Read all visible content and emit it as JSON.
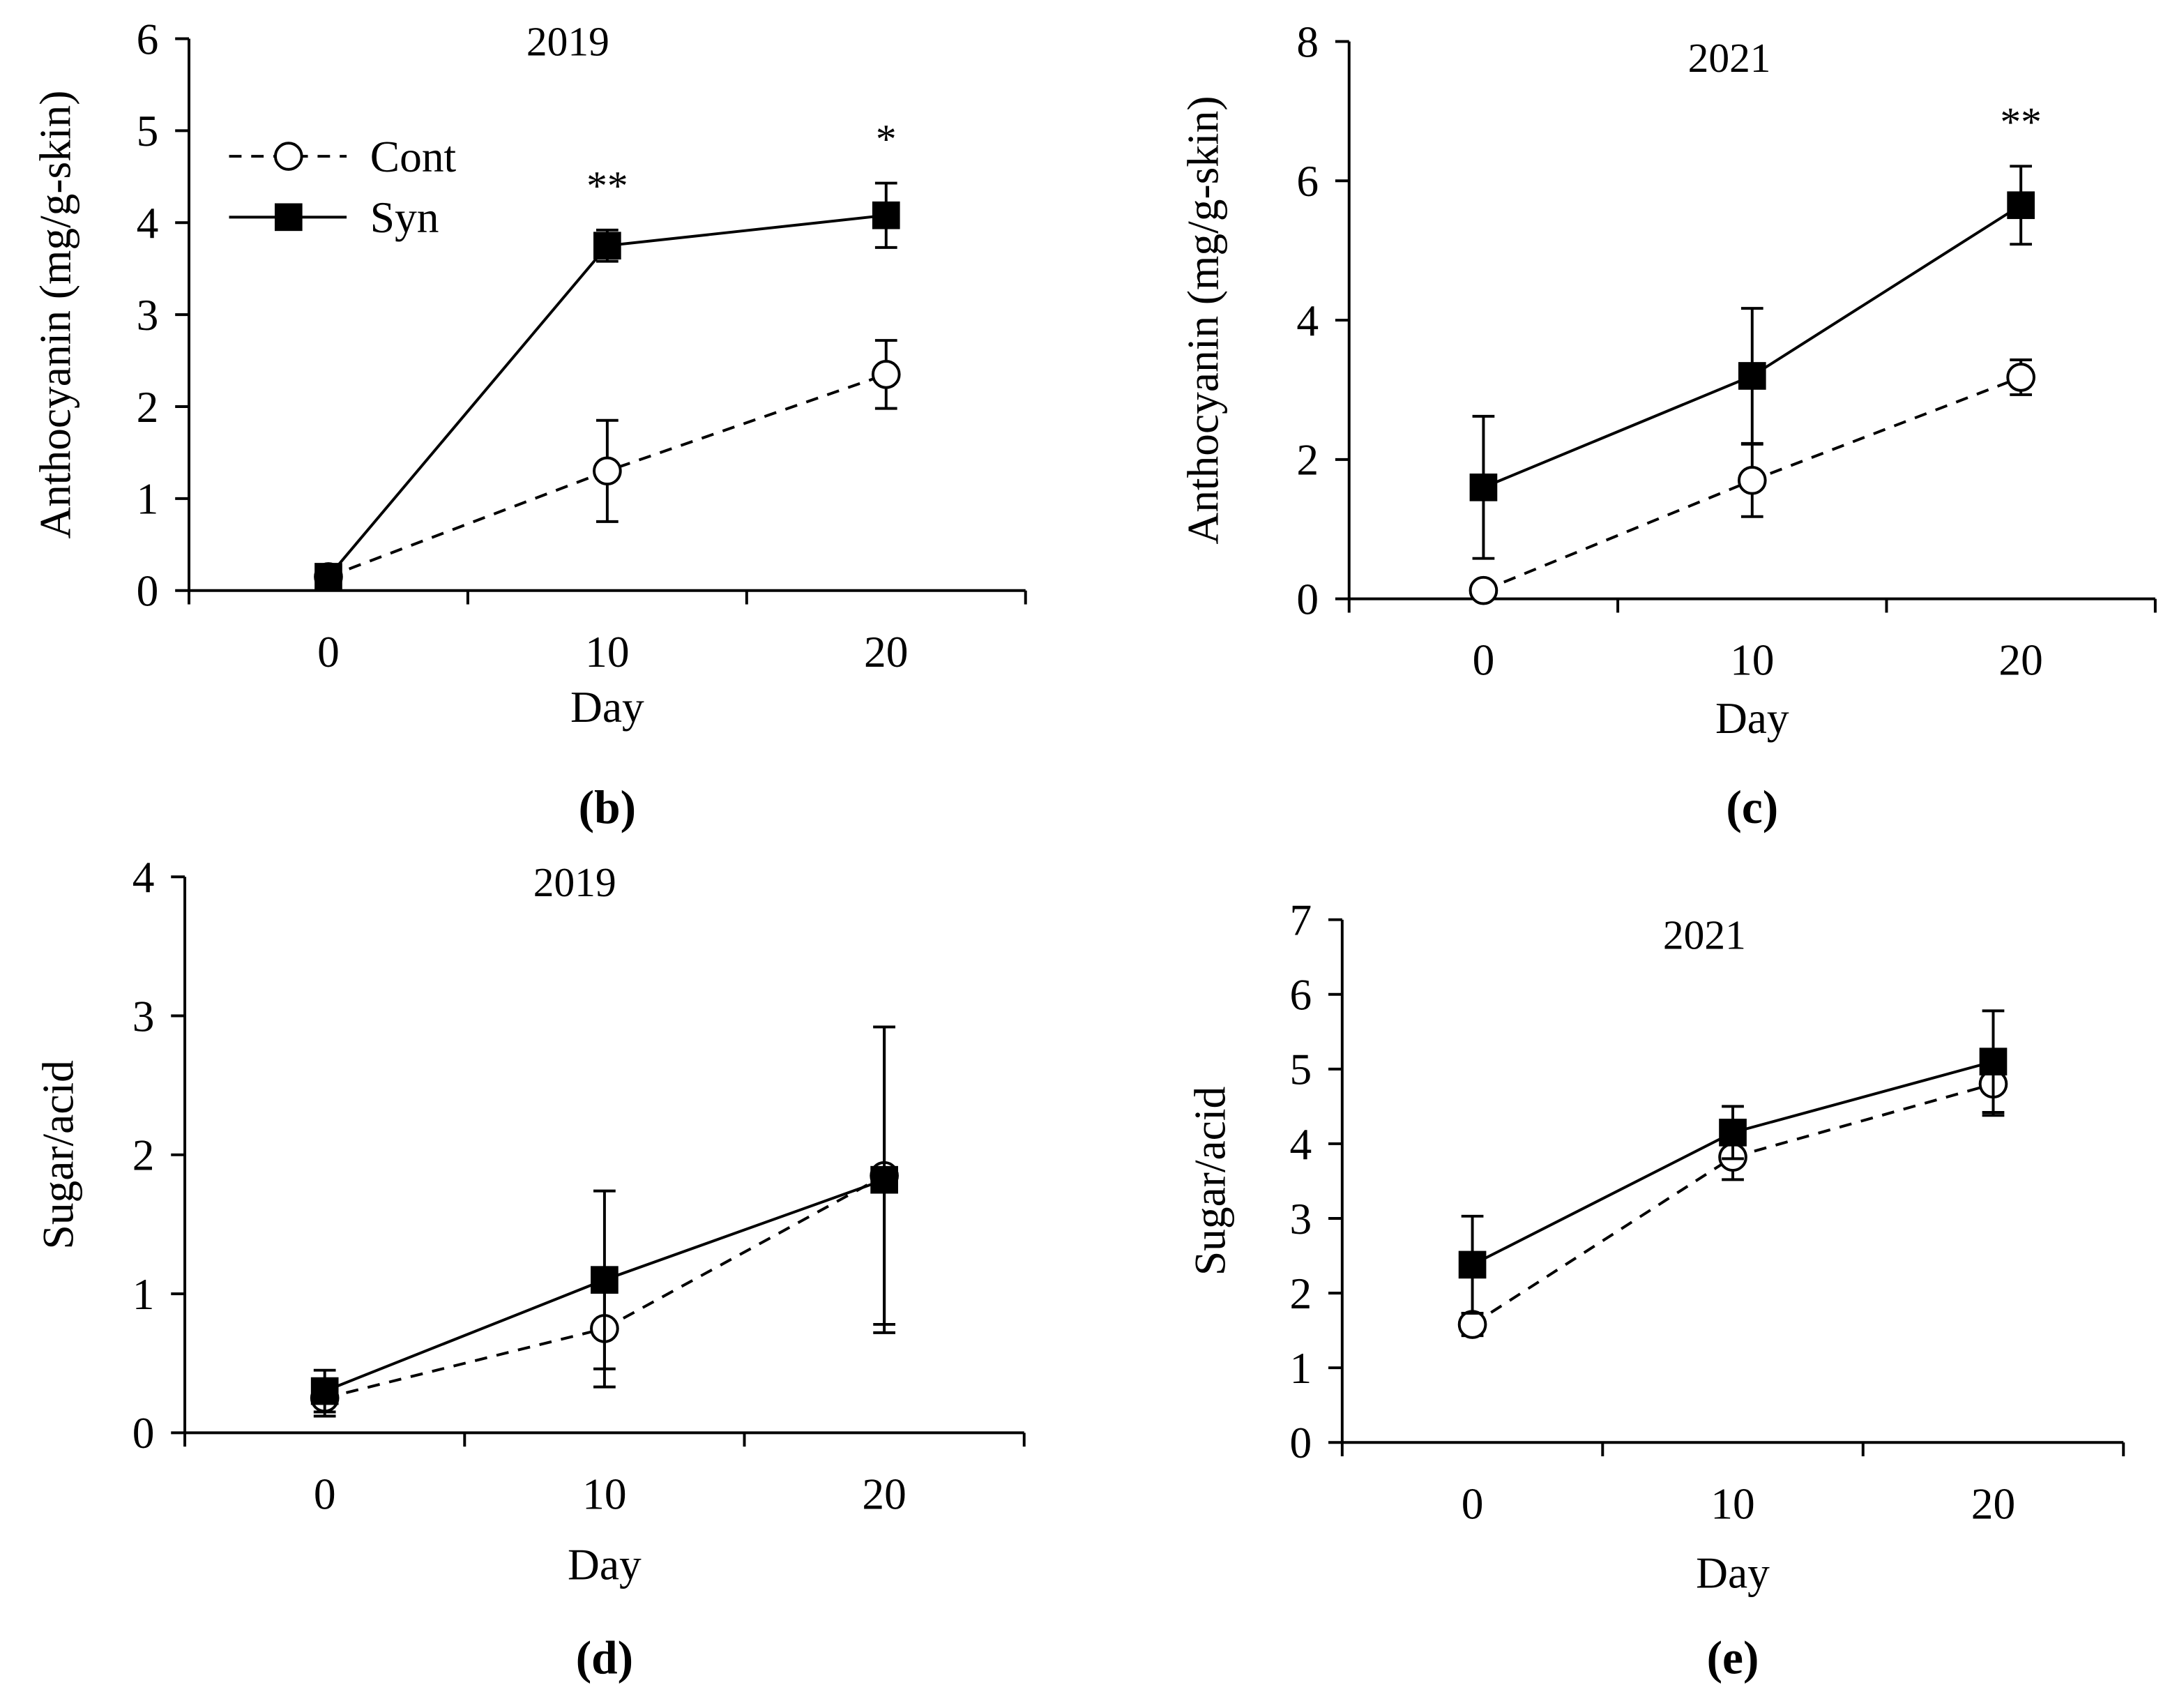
{
  "legend": {
    "entries": [
      "Cont",
      "Syn"
    ],
    "placement": "top-left of panel b"
  },
  "chart_data": [
    {
      "panel": "(b)",
      "type": "line",
      "title": "2019",
      "xlabel": "Day",
      "ylabel": "Anthocyanin (mg/g-skin)",
      "x": [
        0,
        10,
        20
      ],
      "xticks": [
        "0",
        "10",
        "20"
      ],
      "xlim": [
        -5,
        25
      ],
      "ylim": [
        0,
        6
      ],
      "yticks": [
        "0",
        "1",
        "2",
        "3",
        "4",
        "5",
        "6"
      ],
      "series": [
        {
          "name": "Cont",
          "values": [
            0.15,
            1.3,
            2.35
          ],
          "errors": [
            0.0,
            0.55,
            0.37
          ]
        },
        {
          "name": "Syn",
          "values": [
            0.15,
            3.75,
            4.08
          ],
          "errors": [
            0.0,
            0.17,
            0.35
          ]
        }
      ],
      "annotations": [
        {
          "x": 10,
          "text": "**"
        },
        {
          "x": 20,
          "text": "*"
        }
      ]
    },
    {
      "panel": "(c)",
      "type": "line",
      "title": "2021",
      "xlabel": "Day",
      "ylabel": "Anthocyanin (mg/g-skin)",
      "x": [
        0,
        10,
        20
      ],
      "xticks": [
        "0",
        "10",
        "20"
      ],
      "xlim": [
        -5,
        25
      ],
      "ylim": [
        0,
        8
      ],
      "yticks": [
        "0",
        "2",
        "4",
        "6",
        "8"
      ],
      "series": [
        {
          "name": "Cont",
          "values": [
            0.12,
            1.7,
            3.18
          ],
          "errors": [
            0.0,
            0.52,
            0.25
          ]
        },
        {
          "name": "Syn",
          "values": [
            1.6,
            3.2,
            5.65
          ],
          "errors": [
            1.02,
            0.97,
            0.56
          ]
        }
      ],
      "annotations": [
        {
          "x": 20,
          "text": "**"
        }
      ]
    },
    {
      "panel": "(d)",
      "type": "line",
      "title": "2019",
      "xlabel": "Day",
      "ylabel": "Sugar/acid",
      "x": [
        0,
        10,
        20
      ],
      "xticks": [
        "0",
        "10",
        "20"
      ],
      "xlim": [
        -5,
        25
      ],
      "ylim": [
        0,
        4
      ],
      "yticks": [
        "0",
        "1",
        "2",
        "3",
        "4"
      ],
      "series": [
        {
          "name": "Cont",
          "values": [
            0.25,
            0.75,
            1.85
          ],
          "errors": [
            0.13,
            0.42,
            1.07
          ]
        },
        {
          "name": "Syn",
          "values": [
            0.3,
            1.1,
            1.82
          ],
          "errors": [
            0.15,
            0.64,
            1.1
          ]
        }
      ],
      "annotations": []
    },
    {
      "panel": "(e)",
      "type": "line",
      "title": "2021",
      "xlabel": "Day",
      "ylabel": "Sugar/acid",
      "x": [
        0,
        10,
        20
      ],
      "xticks": [
        "0",
        "10",
        "20"
      ],
      "xlim": [
        -5,
        25
      ],
      "ylim": [
        0,
        7
      ],
      "yticks": [
        "0",
        "1",
        "2",
        "3",
        "4",
        "5",
        "6",
        "7"
      ],
      "series": [
        {
          "name": "Cont",
          "values": [
            1.58,
            3.82,
            4.8
          ],
          "errors": [
            0.15,
            0.3,
            0.42
          ]
        },
        {
          "name": "Syn",
          "values": [
            2.38,
            4.15,
            5.1
          ],
          "errors": [
            0.65,
            0.35,
            0.68
          ]
        }
      ],
      "annotations": []
    }
  ]
}
